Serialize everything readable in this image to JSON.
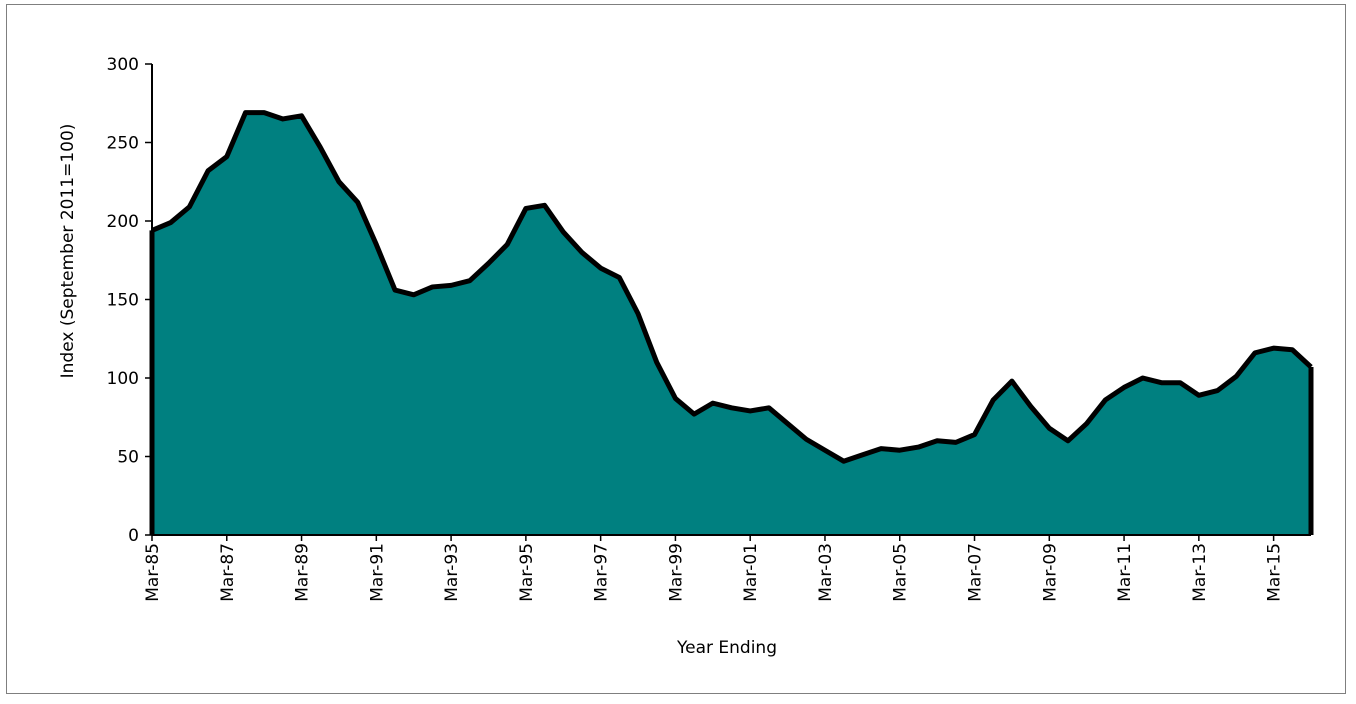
{
  "chart_data": {
    "type": "area",
    "title": "",
    "xlabel": "Year Ending",
    "ylabel": "Index (September 2011=100)",
    "ylim": [
      0,
      300
    ],
    "yticks": [
      0,
      50,
      100,
      150,
      200,
      250,
      300
    ],
    "grid": false,
    "legend": "none",
    "fill_color": "#008080",
    "line_color": "#000000",
    "x_tick_labels": [
      "Mar-85",
      "Mar-87",
      "Mar-89",
      "Mar-91",
      "Mar-93",
      "Mar-95",
      "Mar-97",
      "Mar-99",
      "Mar-01",
      "Mar-03",
      "Mar-05",
      "Mar-07",
      "Mar-09",
      "Mar-11",
      "Mar-13",
      "Mar-15"
    ],
    "x": [
      "Mar-85",
      "Sep-85",
      "Mar-86",
      "Sep-86",
      "Mar-87",
      "Sep-87",
      "Mar-88",
      "Sep-88",
      "Mar-89",
      "Sep-89",
      "Mar-90",
      "Sep-90",
      "Mar-91",
      "Sep-91",
      "Mar-92",
      "Sep-92",
      "Mar-93",
      "Sep-93",
      "Mar-94",
      "Sep-94",
      "Mar-95",
      "Sep-95",
      "Mar-96",
      "Sep-96",
      "Mar-97",
      "Sep-97",
      "Mar-98",
      "Sep-98",
      "Mar-99",
      "Sep-99",
      "Mar-00",
      "Sep-00",
      "Mar-01",
      "Sep-01",
      "Mar-02",
      "Sep-02",
      "Mar-03",
      "Sep-03",
      "Mar-04",
      "Sep-04",
      "Mar-05",
      "Sep-05",
      "Mar-06",
      "Sep-06",
      "Mar-07",
      "Sep-07",
      "Mar-08",
      "Sep-08",
      "Mar-09",
      "Sep-09",
      "Mar-10",
      "Sep-10",
      "Mar-11",
      "Sep-11",
      "Mar-12",
      "Sep-12",
      "Mar-13",
      "Sep-13",
      "Mar-14",
      "Sep-14",
      "Mar-15",
      "Sep-15",
      "Mar-16"
    ],
    "series": [
      {
        "values": [
          194,
          199,
          209,
          232,
          241,
          269,
          269,
          265,
          267,
          247,
          225,
          212,
          185,
          156,
          153,
          158,
          159,
          162,
          173,
          185,
          208,
          210,
          193,
          180,
          170,
          164,
          141,
          110,
          87,
          77,
          84,
          81,
          79,
          81,
          71,
          61,
          54,
          47,
          51,
          55,
          54,
          56,
          60,
          59,
          64,
          86,
          98,
          82,
          68,
          60,
          71,
          86,
          94,
          100,
          97,
          97,
          89,
          92,
          101,
          116,
          119,
          118,
          107
        ]
      }
    ]
  }
}
